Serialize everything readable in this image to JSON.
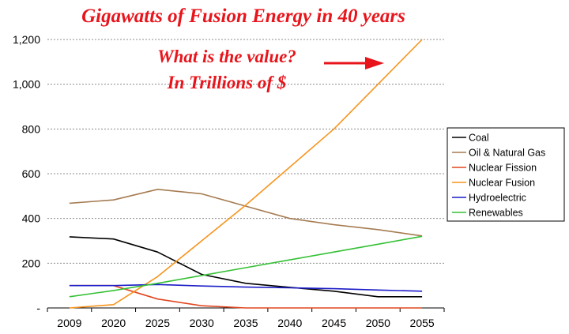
{
  "chart_data": {
    "type": "line",
    "title": "Gigawatts of Fusion Energy in 40 years",
    "annotation": {
      "line1": "What is the value?",
      "line2": "In Trillions of $",
      "color": "#e8141b"
    },
    "categories": [
      "2009",
      "2020",
      "2025",
      "2030",
      "2035",
      "2040",
      "2045",
      "2050",
      "2055"
    ],
    "y_tick_labels": [
      "-",
      "200",
      "400",
      "600",
      "800",
      "1,000",
      "1,200"
    ],
    "ylim": [
      0,
      1200
    ],
    "grid": true,
    "legend_position": "right",
    "series": [
      {
        "name": "Coal",
        "color": "#000000",
        "values": [
          318,
          308,
          250,
          150,
          110,
          92,
          75,
          50,
          50
        ]
      },
      {
        "name": "Oil & Natural Gas",
        "color": "#a67c52",
        "values": [
          468,
          483,
          530,
          510,
          455,
          400,
          372,
          350,
          322
        ]
      },
      {
        "name": "Nuclear Fission",
        "color": "#e0461f",
        "values": [
          100,
          100,
          40,
          10,
          0,
          0,
          0,
          0,
          0
        ]
      },
      {
        "name": "Nuclear Fusion",
        "color": "#f7941d",
        "values": [
          0,
          15,
          140,
          300,
          460,
          630,
          800,
          1000,
          1200
        ]
      },
      {
        "name": "Hydroelectric",
        "color": "#1c1cc8",
        "values": [
          100,
          100,
          105,
          98,
          93,
          90,
          86,
          80,
          75
        ]
      },
      {
        "name": "Renewables",
        "color": "#35c135",
        "values": [
          50,
          78,
          110,
          145,
          180,
          215,
          250,
          285,
          320
        ]
      }
    ]
  }
}
